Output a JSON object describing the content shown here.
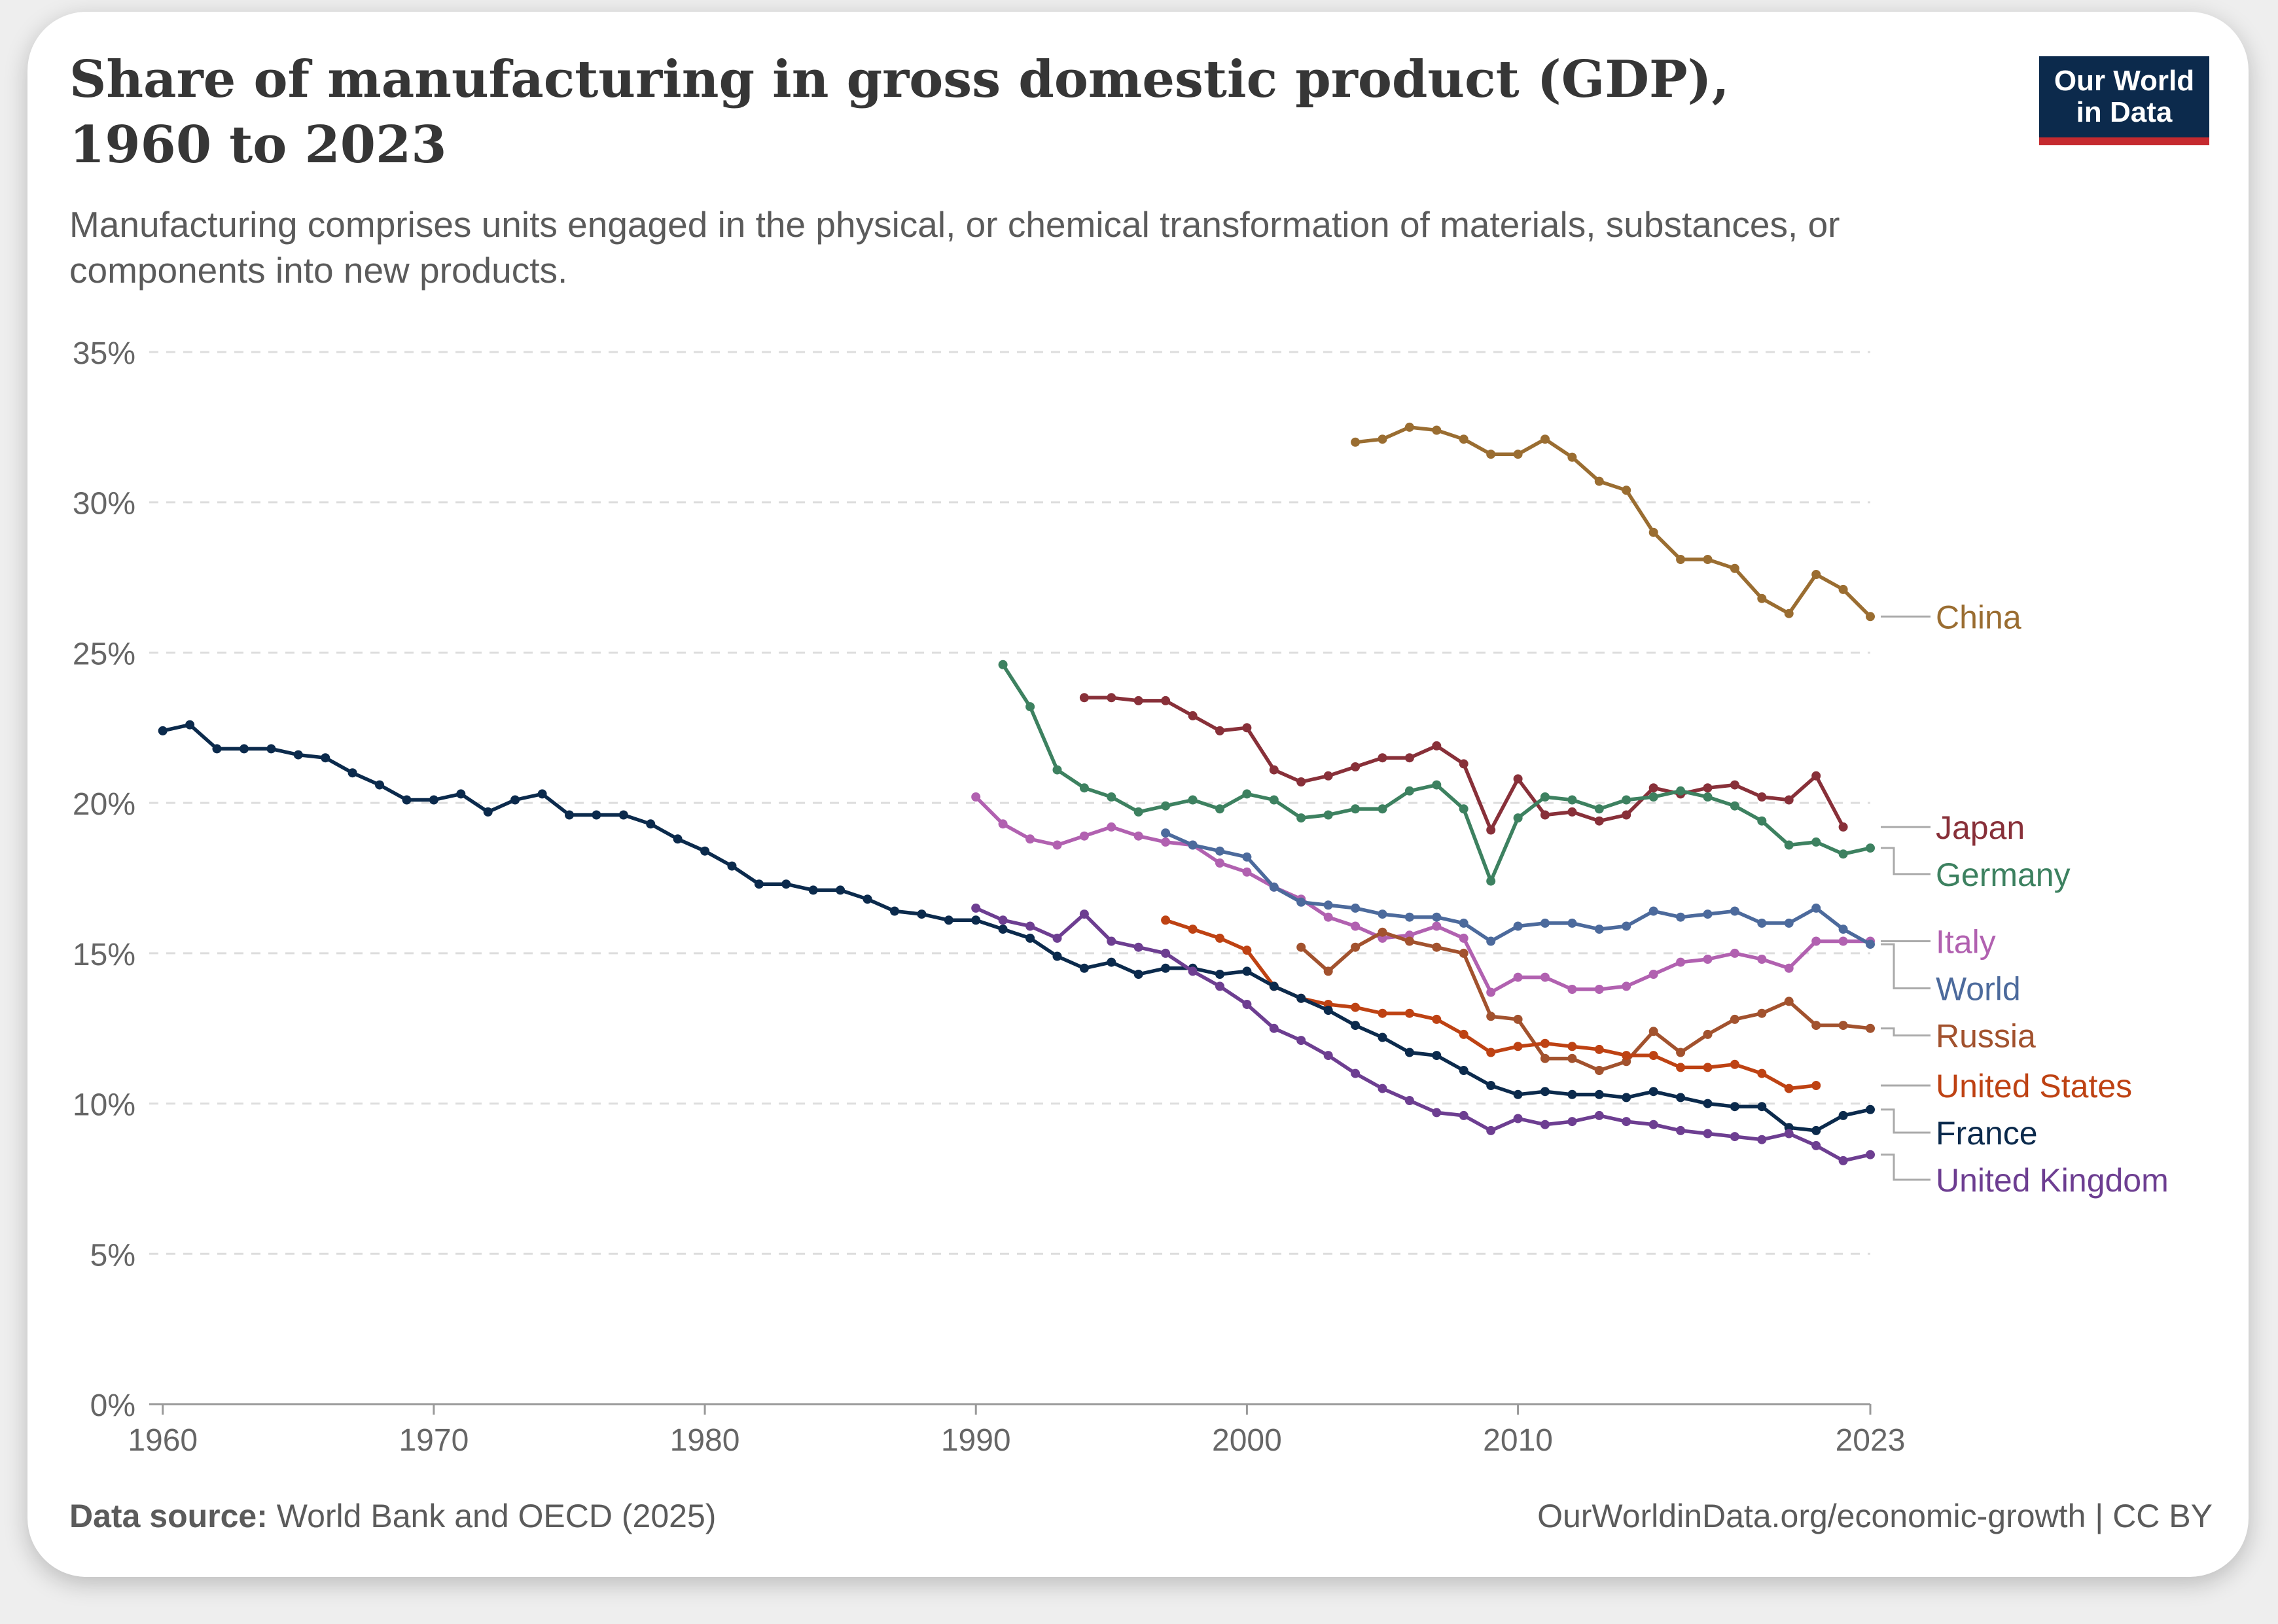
{
  "header": {
    "title": "Share of manufacturing in gross domestic product (GDP), 1960 to 2023",
    "subtitle": "Manufacturing comprises units engaged in the physical, or chemical transformation of materials, substances, or components into new products.",
    "logo_line1": "Our World",
    "logo_line2": "in Data"
  },
  "footer": {
    "source_label": "Data source:",
    "source_text": "World Bank and OECD (2025)",
    "url": "OurWorldinData.org/economic-growth",
    "license": "CC BY"
  },
  "chart_data": {
    "type": "line",
    "x_ticks": [
      "1960",
      "1970",
      "1980",
      "1990",
      "2000",
      "2010",
      "2023"
    ],
    "y_ticks": [
      "0%",
      "5%",
      "10%",
      "15%",
      "20%",
      "25%",
      "30%",
      "35%"
    ],
    "xlim": [
      1959.5,
      2023
    ],
    "ylim": [
      0,
      35
    ],
    "grid": true,
    "legend": "inline-right",
    "series": [
      {
        "name": "China",
        "color": "#9a6d31",
        "x_start": 2004,
        "values": [
          32.0,
          32.1,
          32.5,
          32.4,
          32.1,
          31.6,
          31.6,
          32.1,
          31.5,
          30.7,
          30.4,
          29.0,
          28.1,
          28.1,
          27.8,
          26.8,
          26.3,
          27.6,
          27.1,
          26.2
        ]
      },
      {
        "name": "Japan",
        "color": "#883039",
        "x_start": 1994,
        "values": [
          23.5,
          23.5,
          23.4,
          23.4,
          22.9,
          22.4,
          22.5,
          21.1,
          20.7,
          20.9,
          21.2,
          21.5,
          21.5,
          21.9,
          21.3,
          19.1,
          20.8,
          19.6,
          19.7,
          19.4,
          19.6,
          20.5,
          20.3,
          20.5,
          20.6,
          20.2,
          20.1,
          20.9,
          19.2
        ]
      },
      {
        "name": "Germany",
        "color": "#3d8160",
        "x_start": 1991,
        "values": [
          24.6,
          23.2,
          21.1,
          20.5,
          20.2,
          19.7,
          19.9,
          20.1,
          19.8,
          20.3,
          20.1,
          19.5,
          19.6,
          19.8,
          19.8,
          20.4,
          20.6,
          19.8,
          17.4,
          19.5,
          20.2,
          20.1,
          19.8,
          20.1,
          20.2,
          20.4,
          20.2,
          19.9,
          19.4,
          18.6,
          18.7,
          18.3,
          18.5
        ]
      },
      {
        "name": "Italy",
        "color": "#b161b0",
        "x_start": 1990,
        "values": [
          20.2,
          19.3,
          18.8,
          18.6,
          18.9,
          19.2,
          18.9,
          18.7,
          18.6,
          18.0,
          17.7,
          17.2,
          16.8,
          16.2,
          15.9,
          15.5,
          15.6,
          15.9,
          15.5,
          13.7,
          14.2,
          14.2,
          13.8,
          13.8,
          13.9,
          14.3,
          14.7,
          14.8,
          15.0,
          14.8,
          14.5,
          15.4,
          15.4,
          15.4
        ]
      },
      {
        "name": "World",
        "color": "#4c6a9c",
        "x_start": 1997,
        "values": [
          19.0,
          18.6,
          18.4,
          18.2,
          17.2,
          16.7,
          16.6,
          16.5,
          16.3,
          16.2,
          16.2,
          16.0,
          15.4,
          15.9,
          16.0,
          16.0,
          15.8,
          15.9,
          16.4,
          16.2,
          16.3,
          16.4,
          16.0,
          16.0,
          16.5,
          15.8,
          15.3
        ]
      },
      {
        "name": "Russia",
        "color": "#a2522e",
        "x_start": 2002,
        "values": [
          15.2,
          14.4,
          15.2,
          15.7,
          15.4,
          15.2,
          15.0,
          12.9,
          12.8,
          11.5,
          11.5,
          11.1,
          11.4,
          12.4,
          11.7,
          12.3,
          12.8,
          13.0,
          13.4,
          12.6,
          12.6,
          12.5
        ]
      },
      {
        "name": "United States",
        "color": "#be4213",
        "x_start": 1997,
        "values": [
          16.1,
          15.8,
          15.5,
          15.1,
          13.9,
          13.5,
          13.3,
          13.2,
          13.0,
          13.0,
          12.8,
          12.3,
          11.7,
          11.9,
          12.0,
          11.9,
          11.8,
          11.6,
          11.6,
          11.2,
          11.2,
          11.3,
          11.0,
          10.5,
          10.6
        ]
      },
      {
        "name": "France",
        "color": "#0b2a4c",
        "x_start": 1960,
        "values": [
          22.4,
          22.6,
          21.8,
          21.8,
          21.8,
          21.6,
          21.5,
          21.0,
          20.6,
          20.1,
          20.1,
          20.3,
          19.7,
          20.1,
          20.3,
          19.6,
          19.6,
          19.6,
          19.3,
          18.8,
          18.4,
          17.9,
          17.3,
          17.3,
          17.1,
          17.1,
          16.8,
          16.4,
          16.3,
          16.1,
          16.1,
          15.8,
          15.5,
          14.9,
          14.5,
          14.7,
          14.3,
          14.5,
          14.5,
          14.3,
          14.4,
          13.9,
          13.5,
          13.1,
          12.6,
          12.2,
          11.7,
          11.6,
          11.1,
          10.6,
          10.3,
          10.4,
          10.3,
          10.3,
          10.2,
          10.4,
          10.2,
          10.0,
          9.9,
          9.9,
          9.2,
          9.1,
          9.6,
          9.8
        ]
      },
      {
        "name": "United Kingdom",
        "color": "#6d3e91",
        "x_start": 1990,
        "values": [
          16.5,
          16.1,
          15.9,
          15.5,
          16.3,
          15.4,
          15.2,
          15.0,
          14.4,
          13.9,
          13.3,
          12.5,
          12.1,
          11.6,
          11.0,
          10.5,
          10.1,
          9.7,
          9.6,
          9.1,
          9.5,
          9.3,
          9.4,
          9.6,
          9.4,
          9.3,
          9.1,
          9.0,
          8.9,
          8.8,
          9.0,
          8.6,
          8.1,
          8.3
        ]
      }
    ]
  }
}
